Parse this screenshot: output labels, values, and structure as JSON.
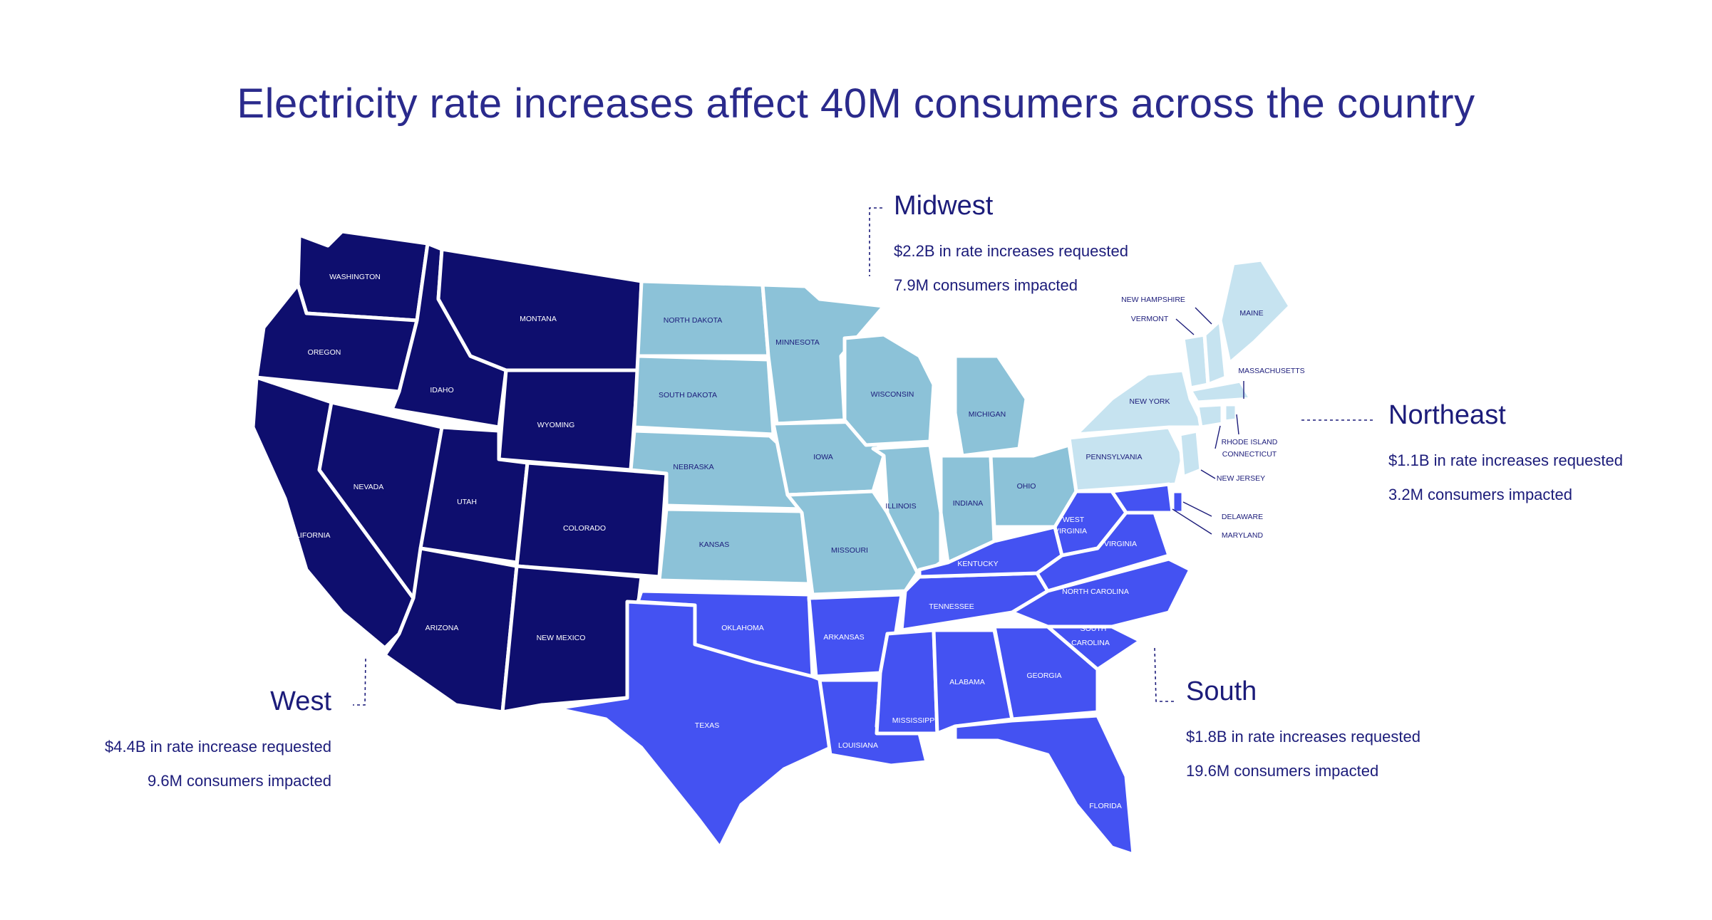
{
  "title": "Electricity rate increases affect 40M consumers across the country",
  "colors": {
    "west": "#0e0e6e",
    "midwest": "#8cc2d8",
    "northeast": "#c6e3f0",
    "south": "#4452f2",
    "text": "#1c1c7a"
  },
  "regions": {
    "west": {
      "name": "West",
      "stat1": "$4.4B in rate increase requested",
      "stat2": "9.6M consumers impacted"
    },
    "midwest": {
      "name": "Midwest",
      "stat1": "$2.2B in rate increases requested",
      "stat2": "7.9M consumers impacted"
    },
    "northeast": {
      "name": "Northeast",
      "stat1": "$1.1B in rate increases requested",
      "stat2": "3.2M consumers impacted"
    },
    "south": {
      "name": "South",
      "stat1": "$1.8B in rate increases requested",
      "stat2": "19.6M consumers impacted"
    }
  },
  "states": {
    "washington": "WASHINGTON",
    "oregon": "OREGON",
    "california": "CALIFORNIA",
    "nevada": "NEVADA",
    "idaho": "IDAHO",
    "montana": "MONTANA",
    "wyoming": "WYOMING",
    "utah": "UTAH",
    "colorado": "COLORADO",
    "arizona": "ARIZONA",
    "new_mexico": "NEW MEXICO",
    "north_dakota": "NORTH DAKOTA",
    "south_dakota": "SOUTH DAKOTA",
    "nebraska": "NEBRASKA",
    "kansas": "KANSAS",
    "minnesota": "MINNESOTA",
    "iowa": "IOWA",
    "missouri": "MISSOURI",
    "wisconsin": "WISCONSIN",
    "illinois": "ILLINOIS",
    "michigan": "MICHIGAN",
    "indiana": "INDIANA",
    "ohio": "OHIO",
    "oklahoma": "OKLAHOMA",
    "texas": "TEXAS",
    "arkansas": "ARKANSAS",
    "louisiana": "LOUISIANA",
    "mississippi": "MISSISSIPPI",
    "alabama": "ALABAMA",
    "georgia": "GEORGIA",
    "florida": "FLORIDA",
    "tennessee": "TENNESSEE",
    "kentucky": "KENTUCKY",
    "west_virginia_1": "WEST",
    "west_virginia_2": "VIRGINIA",
    "virginia": "VIRGINIA",
    "north_carolina": "NORTH CAROLINA",
    "south_carolina_1": "SOUTH",
    "south_carolina_2": "CAROLINA",
    "pennsylvania": "PENNSYLVANIA",
    "new_york": "NEW YORK",
    "maine": "MAINE",
    "new_hampshire": "NEW HAMPSHIRE",
    "vermont": "VERMONT",
    "massachusetts": "MASSACHUSETTS",
    "rhode_island": "RHODE ISLAND",
    "connecticut": "CONNECTICUT",
    "new_jersey": "NEW JERSEY",
    "delaware": "DELAWARE",
    "maryland": "MARYLAND"
  }
}
